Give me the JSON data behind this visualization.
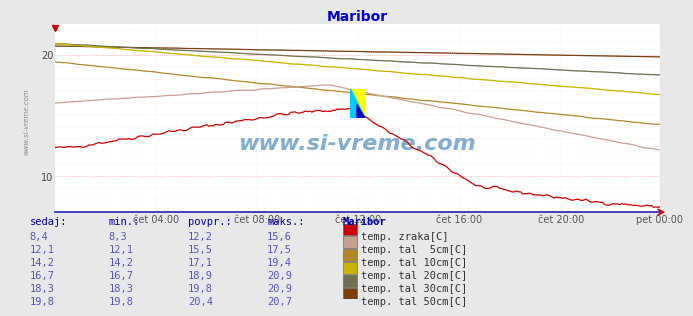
{
  "title": "Maribor",
  "title_color": "#0000cc",
  "bg_color": "#e8e8e8",
  "plot_bg_color": "#ffffff",
  "x_min": 0,
  "x_max": 287,
  "y_min": 7.0,
  "y_max": 22.5,
  "yticks": [
    10,
    20
  ],
  "xtick_labels": [
    "čet 04:00",
    "čet 08:00",
    "čet 12:00",
    "čet 16:00",
    "čet 20:00",
    "pet 00:00"
  ],
  "xtick_positions": [
    48,
    96,
    144,
    192,
    240,
    287
  ],
  "series": {
    "temp_zraka": {
      "color": "#cc0000"
    },
    "tal_5cm": {
      "color": "#c8a090"
    },
    "tal_10cm": {
      "color": "#b08828"
    },
    "tal_20cm": {
      "color": "#c8b400"
    },
    "tal_30cm": {
      "color": "#707050"
    },
    "tal_50cm": {
      "color": "#7a4010"
    }
  },
  "watermark": "www.si-vreme.com",
  "watermark_color": "#1a6aaa",
  "table_header": [
    "sedaj:",
    "min.:",
    "povpr.:",
    "maks.:",
    "Maribor"
  ],
  "table_color": "#0000aa",
  "table_rows": [
    [
      "8,4",
      "8,3",
      "12,2",
      "15,6",
      "#cc0000",
      "temp. zraka[C]"
    ],
    [
      "12,1",
      "12,1",
      "15,5",
      "17,5",
      "#c8a090",
      "temp. tal  5cm[C]"
    ],
    [
      "14,2",
      "14,2",
      "17,1",
      "19,4",
      "#b08828",
      "temp. tal 10cm[C]"
    ],
    [
      "16,7",
      "16,7",
      "18,9",
      "20,9",
      "#c8b400",
      "temp. tal 20cm[C]"
    ],
    [
      "18,3",
      "18,3",
      "19,8",
      "20,9",
      "#707050",
      "temp. tal 30cm[C]"
    ],
    [
      "19,8",
      "19,8",
      "20,4",
      "20,7",
      "#7a4010",
      "temp. tal 50cm[C]"
    ]
  ]
}
